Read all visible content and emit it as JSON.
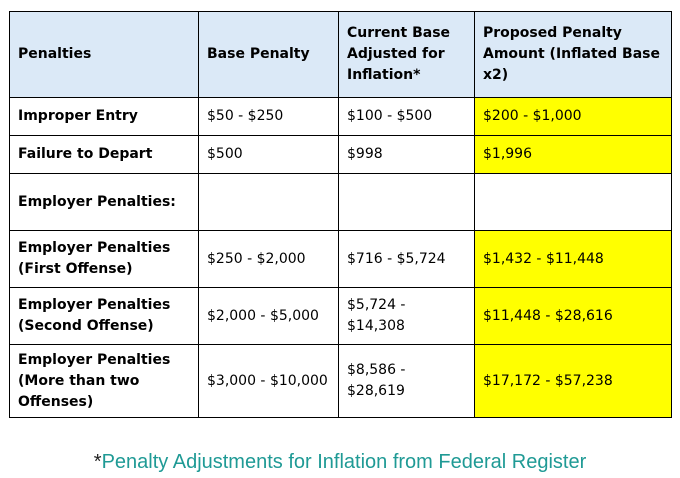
{
  "table": {
    "headers": [
      "Penalties",
      "Base Penalty",
      "Current Base Adjusted for Inflation*",
      "Proposed Penalty Amount (Inflated Base x2)"
    ],
    "rows": [
      {
        "label": "Improper Entry",
        "base": "$50 - $250",
        "adjusted": "$100 - $500",
        "proposed": "$200 - $1,000"
      },
      {
        "label": "Failure to Depart",
        "base": "$500",
        "adjusted": "$998",
        "proposed": "$1,996"
      },
      {
        "label": "Employer Penalties:",
        "base": "",
        "adjusted": "",
        "proposed": ""
      },
      {
        "label": "Employer Penalties (First Offense)",
        "base": "$250 - $2,000",
        "adjusted": "$716 - $5,724",
        "proposed": "$1,432 - $11,448"
      },
      {
        "label": "Employer Penalties (Second Offense)",
        "base": "$2,000 - $5,000",
        "adjusted": "$5,724 - $14,308",
        "proposed": "$11,448 - $28,616"
      },
      {
        "label": "Employer Penalties (More than two Offenses)",
        "base": "$3,000 - $10,000",
        "adjusted": "$8,586 - $28,619",
        "proposed": "$17,172 - $57,238"
      }
    ]
  },
  "footnote": {
    "marker": "*",
    "text": "Penalty Adjustments for Inflation from Federal Register"
  },
  "colors": {
    "header_background": "#dbe9f7",
    "highlight": "#ffff00",
    "link": "#1f9a95"
  }
}
